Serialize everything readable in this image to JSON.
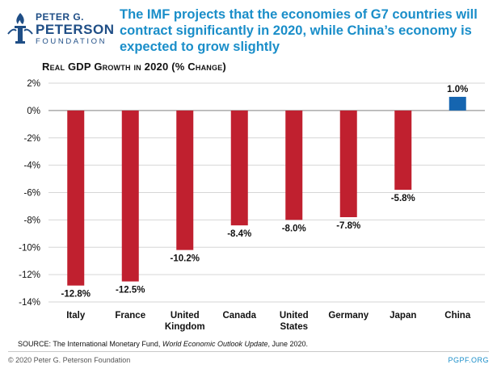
{
  "brand": {
    "line1": "PETER G.",
    "line2": "PETERSON",
    "line3": "FOUNDATION"
  },
  "header": {
    "title": "The IMF projects that the economies of G7 countries will contract significantly in 2020, while China’s economy is expected to grow slightly"
  },
  "colors": {
    "negative": "#c0202f",
    "positive": "#1565b0",
    "title": "#1a8ec9",
    "logo": "#1f4e86"
  },
  "chart_data": {
    "type": "bar",
    "title": "Real GDP Growth in 2020 (% Change)",
    "categories": [
      "Italy",
      "France",
      "United Kingdom",
      "Canada",
      "United States",
      "Germany",
      "Japan",
      "China"
    ],
    "category_lines": [
      [
        "Italy"
      ],
      [
        "France"
      ],
      [
        "United",
        "Kingdom"
      ],
      [
        "Canada"
      ],
      [
        "United",
        "States"
      ],
      [
        "Germany"
      ],
      [
        "Japan"
      ],
      [
        "China"
      ]
    ],
    "values": [
      -12.8,
      -12.5,
      -10.2,
      -8.4,
      -8.0,
      -7.8,
      -5.8,
      1.0
    ],
    "data_labels": [
      "-12.8%",
      "-12.5%",
      "-10.2%",
      "-8.4%",
      "-8.0%",
      "-7.8%",
      "-5.8%",
      "1.0%"
    ],
    "ylim": [
      -14,
      2
    ],
    "yticks": [
      2,
      0,
      -2,
      -4,
      -6,
      -8,
      -10,
      -12,
      -14
    ],
    "ytick_labels": [
      "2%",
      "0%",
      "-2%",
      "-4%",
      "-6%",
      "-8%",
      "-10%",
      "-12%",
      "-14%"
    ],
    "xlabel": "",
    "ylabel": ""
  },
  "footer": {
    "source_prefix": "SOURCE: The International Monetary Fund, ",
    "source_italic": "World Economic Outlook Update",
    "source_suffix": ", June 2020.",
    "copyright": "© 2020 Peter G. Peterson Foundation",
    "site": "PGPF.ORG"
  }
}
